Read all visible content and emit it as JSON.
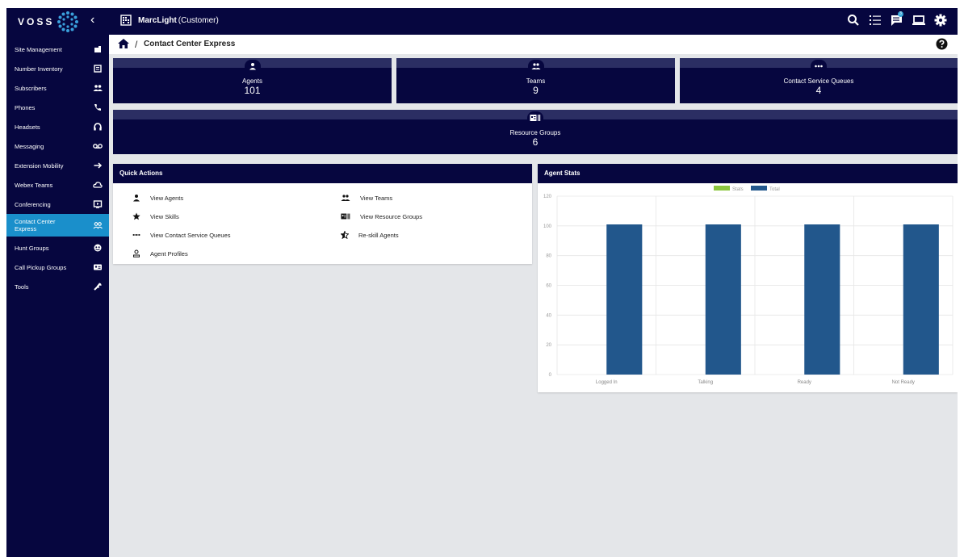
{
  "brand": {
    "name": "VOSS"
  },
  "header": {
    "customer_name": "MarcLight",
    "customer_type": "(Customer)"
  },
  "notifications": {
    "count": "3"
  },
  "sidebar": {
    "items": [
      {
        "label": "Site Management",
        "icon": "building-icon"
      },
      {
        "label": "Number Inventory",
        "icon": "book-icon"
      },
      {
        "label": "Subscribers",
        "icon": "people-icon"
      },
      {
        "label": "Phones",
        "icon": "phone-icon"
      },
      {
        "label": "Headsets",
        "icon": "headset-icon"
      },
      {
        "label": "Messaging",
        "icon": "voicemail-icon"
      },
      {
        "label": "Extension Mobility",
        "icon": "arrow-right-icon"
      },
      {
        "label": "Webex Teams",
        "icon": "cloud-icon"
      },
      {
        "label": "Conferencing",
        "icon": "screen-icon"
      },
      {
        "label": "Contact Center Express",
        "icon": "group-icon",
        "active": true
      },
      {
        "label": "Hunt Groups",
        "icon": "headset-circle-icon"
      },
      {
        "label": "Call Pickup Groups",
        "icon": "contact-card-icon"
      },
      {
        "label": "Tools",
        "icon": "wrench-icon"
      }
    ]
  },
  "breadcrumb": {
    "separator": "/",
    "title": "Contact Center Express"
  },
  "tiles": [
    {
      "label": "Agents",
      "value": "101",
      "icon": "person-icon"
    },
    {
      "label": "Teams",
      "value": "9",
      "icon": "people-icon"
    },
    {
      "label": "Contact Service Queues",
      "value": "4",
      "icon": "dots-icon"
    },
    {
      "label": "Resource Groups",
      "value": "6",
      "icon": "card-icon"
    }
  ],
  "quick_actions": {
    "title": "Quick Actions",
    "items": [
      {
        "label": "View Agents",
        "icon": "person-icon"
      },
      {
        "label": "View Teams",
        "icon": "people-icon"
      },
      {
        "label": "View Skills",
        "icon": "star-icon"
      },
      {
        "label": "View Resource Groups",
        "icon": "card-icon"
      },
      {
        "label": "View Contact Service Queues",
        "icon": "dots-icon"
      },
      {
        "label": "Re-skill Agents",
        "icon": "star-half-icon"
      },
      {
        "label": "Agent Profiles",
        "icon": "profile-icon"
      }
    ]
  },
  "agent_stats": {
    "title": "Agent Stats"
  },
  "chart_data": {
    "type": "bar",
    "title": "",
    "categories": [
      "Logged In",
      "Talking",
      "Ready",
      "Not Ready"
    ],
    "series": [
      {
        "name": "Stats",
        "color": "#8cc63f",
        "values": [
          0,
          0,
          0,
          0
        ]
      },
      {
        "name": "Total",
        "color": "#22578c",
        "values": [
          101,
          101,
          101,
          101
        ]
      }
    ],
    "ylim": [
      0,
      120
    ],
    "yticks": [
      "0",
      "20",
      "40",
      "60",
      "80",
      "100",
      "120"
    ],
    "grid": true,
    "legend": "top-center"
  },
  "colors": {
    "navy": "#06063f",
    "accent": "#1a8fcb",
    "bar": "#22578c",
    "legend_green": "#8cc63f"
  }
}
